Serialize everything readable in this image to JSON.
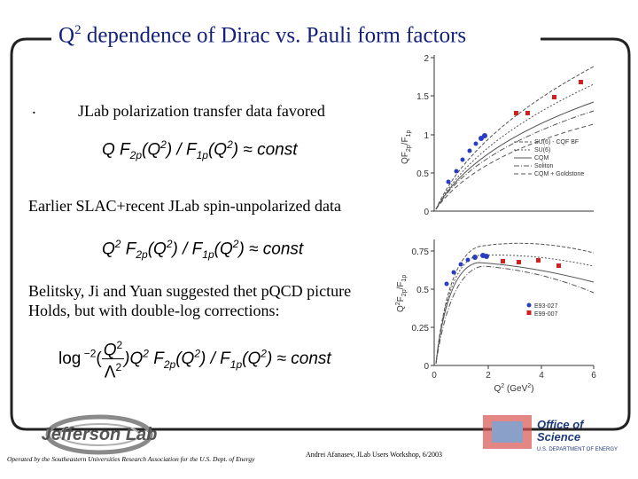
{
  "title": [
    "Q",
    "2",
    " dependence of Dirac vs. Pauli form factors"
  ],
  "bullet": ".",
  "lines": [
    "JLab polarization transfer data favored",
    "Earlier SLAC+recent JLab spin-unpolarized data",
    "Belitsky, Ji and Yuan suggested thet pQCD picture",
    "Holds, but with double-log corrections:"
  ],
  "formulas": [
    [
      "Q F",
      "2p",
      "(Q",
      "2",
      ") / F",
      "1p",
      "(Q",
      "2",
      ") ≈ const"
    ],
    [
      "Q",
      "2",
      " F",
      "2p",
      "(Q",
      "2",
      ") / F",
      "1p",
      "(Q",
      "2",
      ") ≈ const"
    ],
    {
      "prefix": [
        "log",
        " −2",
        "("
      ],
      "num": [
        "Q",
        "2"
      ],
      "den": [
        "Λ",
        "2"
      ],
      "rest": [
        ")Q",
        "2",
        " F",
        "2p",
        "(Q",
        "2",
        ") / F",
        "1p",
        "(Q",
        "2",
        ") ≈ const"
      ]
    }
  ],
  "plot_top": {
    "yticks": [
      "0",
      "0.5",
      "1",
      "1.5",
      "2"
    ],
    "ylabel": [
      "QF",
      "2p",
      "/F",
      "1p"
    ],
    "legend": [
      "SU(6) - CQF BF",
      "SU(6)",
      "CQM",
      "Soliton",
      "CQM + Goldstone"
    ]
  },
  "plot_bottom": {
    "yticks": [
      "0",
      "0.25",
      "0.5",
      "0.75"
    ],
    "xticks": [
      "0",
      "2",
      "4",
      "6"
    ],
    "xlabel": [
      "Q",
      "2",
      " (GeV",
      "2",
      ")"
    ],
    "ylabel": [
      "Q",
      "2",
      "F",
      "2p",
      "/F",
      "1p"
    ],
    "legend": [
      "E93-027",
      "E99-007"
    ]
  },
  "footer": {
    "operated": "Operated by the Southeastern Universities Research Association for the U.S. Dept. of Energy",
    "author": "Andrei Afanasev, JLab Users Workshop, 6/2003",
    "jlab_logo": "Jefferson Lab",
    "doe_logo": [
      "Office of",
      "Science",
      "U.S. DEPARTMENT OF ENERGY"
    ]
  }
}
